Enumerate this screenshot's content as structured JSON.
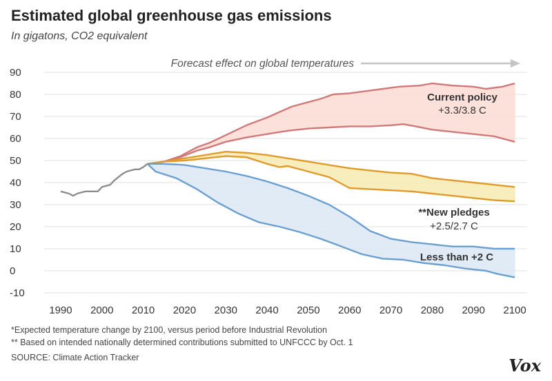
{
  "header": {
    "title": "Estimated global greenhouse gas emissions",
    "subtitle": "In gigatons, CO2 equivalent"
  },
  "footer": {
    "note1": "*Expected temperature change  by 2100, versus period before Industrial Revolution",
    "note2": "** Based on intended nationally determined contributions submitted to UNFCCC by Oct. 1",
    "source": "SOURCE: Climate Action Tracker",
    "logo": "Vox"
  },
  "colors": {
    "historical": "#8c8c8c",
    "current_policy": "#d17878",
    "current_policy_fill": "#fbdcd3",
    "new_pledges": "#e09a2a",
    "new_pledges_fill": "#f7eab0",
    "below_2c": "#6a9fd0",
    "below_2c_fill": "#dbe8f5",
    "grid": "#e2e2e2",
    "arrow": "#c4c4c4"
  },
  "chart_data": {
    "type": "area",
    "title": "Estimated global greenhouse gas emissions",
    "subtitle": "In gigatons, CO2 equivalent",
    "xlabel": "",
    "ylabel": "",
    "xlim": [
      1986,
      2103
    ],
    "ylim": [
      -10,
      90
    ],
    "x_ticks": [
      1990,
      2000,
      2010,
      2020,
      2030,
      2040,
      2050,
      2060,
      2070,
      2080,
      2090,
      2100
    ],
    "y_ticks": [
      -10,
      0,
      10,
      20,
      30,
      40,
      50,
      60,
      70,
      80,
      90
    ],
    "grid": true,
    "forecast_label": "Forecast effect on global temperatures",
    "historical": {
      "x": [
        1990,
        1991,
        1992,
        1993,
        1994,
        1995,
        1996,
        1997,
        1998,
        1999,
        2000,
        2001,
        2002,
        2003,
        2004,
        2005,
        2006,
        2007,
        2008,
        2009,
        2010,
        2011
      ],
      "y": [
        36,
        35.5,
        35,
        34,
        35,
        35.5,
        36,
        36,
        36,
        36,
        38,
        38.5,
        39,
        41,
        42.5,
        44,
        45,
        45.5,
        46,
        46,
        47,
        48.5
      ]
    },
    "series": [
      {
        "label_line1": "Current  policy",
        "label_line2": "+3.3/3.8 C",
        "upper": {
          "x": [
            2011,
            2015,
            2019,
            2023,
            2026,
            2030,
            2035,
            2040,
            2043,
            2046,
            2050,
            2053,
            2056,
            2060,
            2064,
            2068,
            2072,
            2077,
            2080,
            2085,
            2090,
            2093,
            2097,
            2100
          ],
          "y": [
            48.5,
            49.5,
            52,
            56,
            58,
            61.5,
            66,
            69.5,
            72,
            74.5,
            76.5,
            78,
            80,
            80.5,
            81.5,
            82.5,
            83.5,
            84,
            85,
            84,
            83.5,
            82.5,
            83.5,
            85
          ]
        },
        "lower": {
          "x": [
            2011,
            2015,
            2019,
            2023,
            2026,
            2030,
            2035,
            2040,
            2045,
            2050,
            2055,
            2060,
            2065,
            2070,
            2073,
            2076,
            2080,
            2085,
            2090,
            2095,
            2100
          ],
          "y": [
            48.5,
            49.5,
            51.5,
            54.5,
            56,
            58.5,
            60.5,
            62,
            63.5,
            64.5,
            65,
            65.5,
            65.5,
            66,
            66.5,
            65.5,
            64,
            63,
            62,
            61,
            58.5
          ]
        }
      },
      {
        "label_line1": "**New pledges",
        "label_line2": "+2.5/2.7 C",
        "upper": {
          "x": [
            2011,
            2015,
            2020,
            2025,
            2030,
            2035,
            2040,
            2045,
            2050,
            2055,
            2060,
            2065,
            2070,
            2075,
            2080,
            2085,
            2090,
            2095,
            2100
          ],
          "y": [
            48.5,
            49.5,
            51,
            52.5,
            54,
            53.5,
            52.5,
            51,
            49.5,
            48,
            46.5,
            45.5,
            44.5,
            44,
            42,
            41,
            40,
            39,
            38
          ]
        },
        "lower": {
          "x": [
            2011,
            2015,
            2020,
            2025,
            2030,
            2035,
            2040,
            2043,
            2045,
            2050,
            2055,
            2060,
            2065,
            2070,
            2075,
            2080,
            2085,
            2090,
            2095,
            2100
          ],
          "y": [
            48.5,
            49.5,
            50,
            51,
            52,
            51.5,
            48.5,
            47,
            47.5,
            45,
            42.5,
            37.5,
            37,
            36.5,
            36,
            35,
            34,
            33,
            32,
            31.5
          ]
        }
      },
      {
        "label_line1": "Less than +2 C",
        "label_line2": "",
        "upper": {
          "x": [
            2011,
            2015,
            2020,
            2025,
            2030,
            2035,
            2040,
            2045,
            2050,
            2055,
            2060,
            2065,
            2070,
            2075,
            2080,
            2085,
            2090,
            2095,
            2100
          ],
          "y": [
            48.5,
            48.5,
            48,
            46.5,
            45,
            43,
            40.5,
            37.5,
            34,
            30,
            24.5,
            18,
            14.5,
            13,
            12,
            11,
            11,
            10,
            10
          ]
        },
        "lower": {
          "x": [
            2011,
            2013,
            2018,
            2023,
            2028,
            2033,
            2038,
            2043,
            2048,
            2053,
            2058,
            2063,
            2068,
            2073,
            2078,
            2083,
            2088,
            2093,
            2096,
            2100
          ],
          "y": [
            48.5,
            45,
            42,
            37,
            31,
            26,
            22,
            20,
            17.5,
            14.5,
            11,
            7.5,
            5.5,
            5,
            3.5,
            2.5,
            1,
            0,
            -1.5,
            -3
          ]
        }
      }
    ]
  }
}
